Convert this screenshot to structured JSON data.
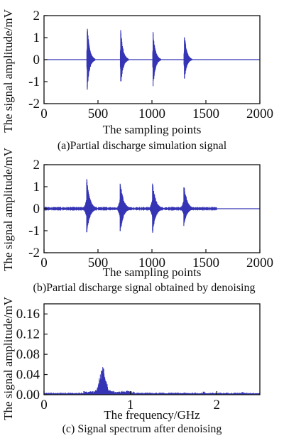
{
  "colors": {
    "signal": "#3434b4",
    "axis": "#111111",
    "background": "#ffffff"
  },
  "chart_data": [
    {
      "id": "a",
      "type": "line",
      "caption": "(a)Partial discharge simulation signal",
      "xlabel": "The sampling points",
      "ylabel": "The signal amplitude/mV",
      "xlim": [
        0,
        2000
      ],
      "ylim": [
        -2,
        2
      ],
      "xticks": [
        0,
        500,
        1000,
        1500,
        2000
      ],
      "yticks": [
        -2,
        -1,
        0,
        1,
        2
      ],
      "xtick_labels": [
        "0",
        "500",
        "1000",
        "1500",
        "2000"
      ],
      "ytick_labels": [
        "-2",
        "-1",
        "0",
        "1",
        "2"
      ],
      "noise_amplitude": 0,
      "pulses": [
        {
          "x": 400,
          "pos_peak": 1.65,
          "neg_peak": -1.45,
          "decay": 45
        },
        {
          "x": 710,
          "pos_peak": 1.5,
          "neg_peak": -1.3,
          "decay": 45
        },
        {
          "x": 1010,
          "pos_peak": 1.35,
          "neg_peak": -1.3,
          "decay": 45
        },
        {
          "x": 1300,
          "pos_peak": 1.3,
          "neg_peak": -1.0,
          "decay": 45
        }
      ],
      "grid": false
    },
    {
      "id": "b",
      "type": "line",
      "caption": "(b)Partial discharge signal obtained by denoising",
      "xlabel": "The sampling points",
      "ylabel": "The signal amplitude/mV",
      "xlim": [
        0,
        2000
      ],
      "ylim": [
        -2,
        2
      ],
      "xticks": [
        0,
        500,
        1000,
        1500,
        2000
      ],
      "yticks": [
        -2,
        -1,
        0,
        1,
        2
      ],
      "xtick_labels": [
        "0",
        "500",
        "1000",
        "1500",
        "2000"
      ],
      "ytick_labels": [
        "-2",
        "-1",
        "0",
        "1",
        "2"
      ],
      "noise_amplitude": 0.06,
      "noise_range": [
        0,
        1600
      ],
      "pulses": [
        {
          "x": 395,
          "pos_peak": 1.45,
          "neg_peak": -1.2,
          "decay": 60
        },
        {
          "x": 705,
          "pos_peak": 1.35,
          "neg_peak": -1.2,
          "decay": 60
        },
        {
          "x": 1005,
          "pos_peak": 1.3,
          "neg_peak": -1.2,
          "decay": 60
        },
        {
          "x": 1295,
          "pos_peak": 1.2,
          "neg_peak": -0.8,
          "decay": 60
        }
      ],
      "grid": false
    },
    {
      "id": "c",
      "type": "area",
      "caption": "(c) Signal spectrum after denoising",
      "xlabel": "The frequency/GHz",
      "ylabel": "The signal amplitude/mV",
      "xlim": [
        0,
        2.5
      ],
      "ylim": [
        0,
        0.18
      ],
      "xticks": [
        0,
        1,
        2
      ],
      "yticks": [
        0,
        0.04,
        0.08,
        0.12,
        0.16
      ],
      "xtick_labels": [
        "0",
        "1",
        "2"
      ],
      "ytick_labels": [
        "0.00",
        "0.04",
        "0.08",
        "0.12",
        "0.16"
      ],
      "baseline": 0.003,
      "peak": {
        "x": 0.68,
        "y": 0.052,
        "width": 0.12
      },
      "small_spikes": [
        {
          "x": 1.85,
          "y": 0.006
        },
        {
          "x": 2.3,
          "y": 0.005
        }
      ],
      "grid": false
    }
  ]
}
